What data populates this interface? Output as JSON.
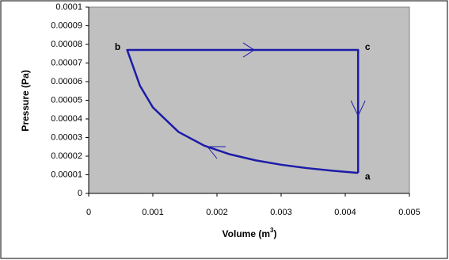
{
  "chart_data": {
    "type": "line",
    "x_label": "Volume (m",
    "x_label_sup": "3",
    "x_label_end": ")",
    "y_label": "Pressure (Pa)",
    "series": [
      {
        "color": "#1c1ca8",
        "x": [
          0.0042,
          0.0038,
          0.0034,
          0.003,
          0.0026,
          0.0022,
          0.0018,
          0.0014,
          0.001,
          0.0008,
          0.0006,
          0.0042,
          0.0042
        ],
        "values": [
          1.1e-05,
          1.216e-05,
          1.359e-05,
          1.54e-05,
          1.777e-05,
          2.1e-05,
          2.567e-05,
          3.3e-05,
          4.62e-05,
          5.775e-05,
          7.7e-05,
          7.7e-05,
          1.1e-05
        ]
      }
    ],
    "annotations": [
      {
        "text": "a",
        "x": 0.0042,
        "y": 1.1e-05
      },
      {
        "text": "b",
        "x": 0.0006,
        "y": 7.7e-05
      },
      {
        "text": "c",
        "x": 0.0042,
        "y": 7.7e-05
      }
    ],
    "xlim": [
      0,
      0.005
    ],
    "xticks": [
      0,
      0.001,
      0.002,
      0.003,
      0.004,
      0.005
    ],
    "ylim": [
      0,
      0.0001
    ],
    "yticks": [
      0,
      1e-05,
      2e-05,
      3e-05,
      4e-05,
      5e-05,
      6e-05,
      7e-05,
      8e-05,
      9e-05,
      0.0001
    ],
    "plot_background": "#c0c0c0"
  }
}
